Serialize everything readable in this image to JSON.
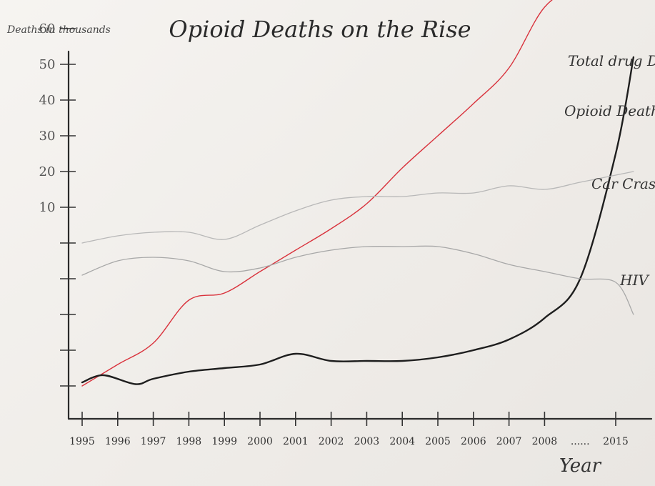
{
  "chart_data": {
    "type": "line",
    "title": "Opioid Deaths on the Rise",
    "ylabel": "Deaths in thousands",
    "xlabel": "Year",
    "y_ticks": [
      "",
      "",
      "",
      "",
      "",
      "10",
      "20",
      "30",
      "40",
      "50",
      "60"
    ],
    "x_ticks": [
      "1995",
      "1996",
      "1997",
      "1998",
      "1999",
      "2000",
      "2001",
      "2002",
      "2003",
      "2004",
      "2005",
      "2006",
      "2007",
      "2008",
      "......",
      "2015"
    ],
    "series": [
      {
        "name": "Total drug Deaths",
        "color": "#d9323c",
        "points": [
          [
            0,
            0.0
          ],
          [
            1,
            0.6
          ],
          [
            2,
            1.2
          ],
          [
            3,
            2.4
          ],
          [
            4,
            2.6
          ],
          [
            5,
            3.2
          ],
          [
            6,
            3.8
          ],
          [
            7,
            4.4
          ],
          [
            8,
            5.1
          ],
          [
            9,
            6.1
          ],
          [
            10,
            7.0
          ],
          [
            11,
            7.9
          ],
          [
            12,
            8.9
          ],
          [
            13,
            10.6
          ],
          [
            14,
            11.2
          ],
          [
            15,
            11.5
          ]
        ]
      },
      {
        "name": "Opioid Deaths",
        "color": "#1e1e1e",
        "points": [
          [
            0,
            0.1
          ],
          [
            0.6,
            0.3
          ],
          [
            1.5,
            0.05
          ],
          [
            2,
            0.2
          ],
          [
            3,
            0.4
          ],
          [
            4,
            0.5
          ],
          [
            5,
            0.6
          ],
          [
            6,
            0.9
          ],
          [
            7,
            0.7
          ],
          [
            8,
            0.7
          ],
          [
            9,
            0.7
          ],
          [
            10,
            0.8
          ],
          [
            11,
            1.0
          ],
          [
            12,
            1.3
          ],
          [
            13,
            1.9
          ],
          [
            14,
            3.0
          ],
          [
            15,
            6.5
          ],
          [
            15.5,
            9.2
          ]
        ]
      },
      {
        "name": "Car Crash",
        "color": "#b8b8b8",
        "points": [
          [
            0,
            4.0
          ],
          [
            1,
            4.2
          ],
          [
            2,
            4.3
          ],
          [
            3,
            4.3
          ],
          [
            4,
            4.1
          ],
          [
            5,
            4.5
          ],
          [
            6,
            4.9
          ],
          [
            7,
            5.2
          ],
          [
            8,
            5.3
          ],
          [
            9,
            5.3
          ],
          [
            10,
            5.4
          ],
          [
            11,
            5.4
          ],
          [
            12,
            5.6
          ],
          [
            13,
            5.5
          ],
          [
            14,
            5.7
          ],
          [
            15,
            5.9
          ],
          [
            15.5,
            6.0
          ]
        ]
      },
      {
        "name": "HIV",
        "color": "#a8a8a8",
        "points": [
          [
            0,
            3.1
          ],
          [
            1,
            3.5
          ],
          [
            2,
            3.6
          ],
          [
            3,
            3.5
          ],
          [
            4,
            3.2
          ],
          [
            5,
            3.3
          ],
          [
            6,
            3.6
          ],
          [
            7,
            3.8
          ],
          [
            8,
            3.9
          ],
          [
            9,
            3.9
          ],
          [
            10,
            3.9
          ],
          [
            11,
            3.7
          ],
          [
            12,
            3.4
          ],
          [
            13,
            3.2
          ],
          [
            14,
            3.0
          ],
          [
            15,
            2.9
          ],
          [
            15.5,
            2.0
          ]
        ]
      }
    ],
    "grid": false,
    "legend": "inline-right"
  }
}
